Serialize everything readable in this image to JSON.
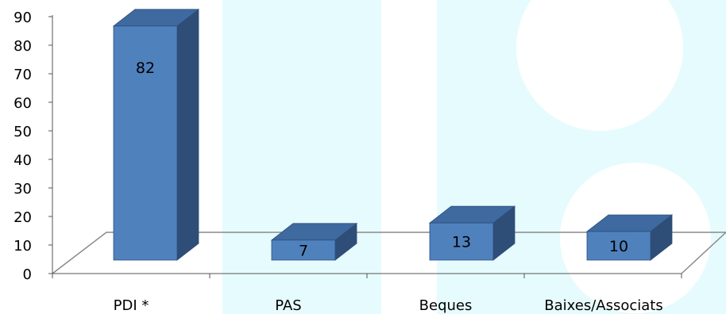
{
  "colors": {
    "bar_front": "#4f81bd",
    "bar_top": "#3e6aa0",
    "bar_side": "#2e4d77",
    "bar_edge": "#2c4f7c",
    "floor_line": "#8a8a8a",
    "axis": "#555555",
    "watermark": "#e6fbfd"
  },
  "chart_data": {
    "type": "bar",
    "style": "3d-column",
    "categories": [
      "PDI *",
      "PAS",
      "Beques",
      "Baixes/Associats"
    ],
    "values": [
      82,
      7,
      13,
      10
    ],
    "yticks": [
      "0",
      "10",
      "20",
      "30",
      "40",
      "50",
      "60",
      "70",
      "80",
      "90"
    ],
    "ylim": [
      0,
      90
    ],
    "grid": false,
    "legend": "none",
    "title": "",
    "xlabel": "",
    "ylabel": ""
  }
}
